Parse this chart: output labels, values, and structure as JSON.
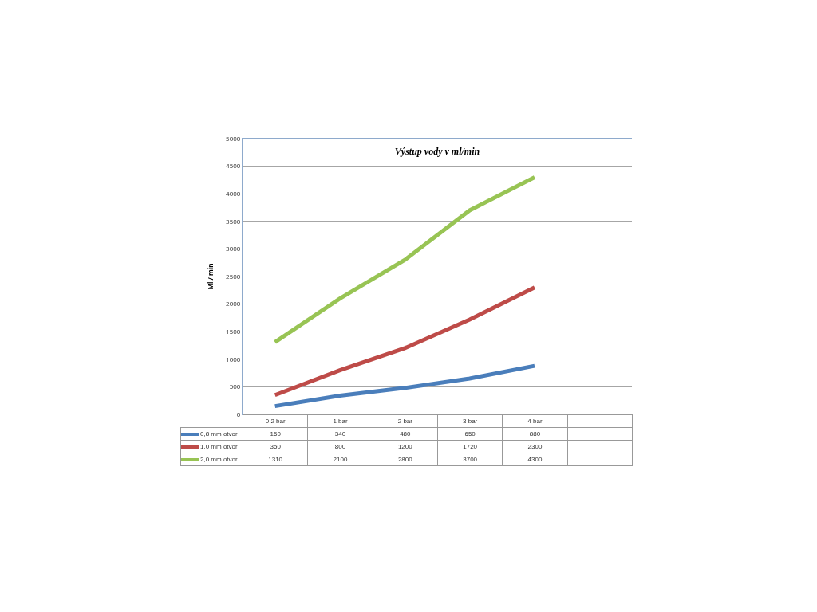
{
  "chart_data": {
    "type": "line",
    "title": "Výstup vody v ml/min",
    "ylabel": "Ml / min",
    "categories": [
      "0,2 bar",
      "1 bar",
      "2 bar",
      "3 bar",
      "4 bar",
      null
    ],
    "series": [
      {
        "name": "0,8 mm  otvor",
        "color": "#4a7ebb",
        "values": [
          150,
          340,
          480,
          650,
          880,
          null
        ]
      },
      {
        "name": "1,0 mm  otvor",
        "color": "#be4b48",
        "values": [
          350,
          800,
          1200,
          1720,
          2300,
          null
        ]
      },
      {
        "name": "2,0 mm  otvor",
        "color": "#98c454",
        "values": [
          1310,
          2100,
          2800,
          3700,
          4300,
          null
        ]
      }
    ],
    "ylim": [
      0,
      5000
    ],
    "yticks": [
      0,
      500,
      1000,
      1500,
      2000,
      2500,
      3000,
      3500,
      4000,
      4500,
      5000
    ],
    "grid": "y",
    "legend": "bottom left",
    "data_labels": true,
    "marker": "none",
    "line_style": "solid"
  }
}
